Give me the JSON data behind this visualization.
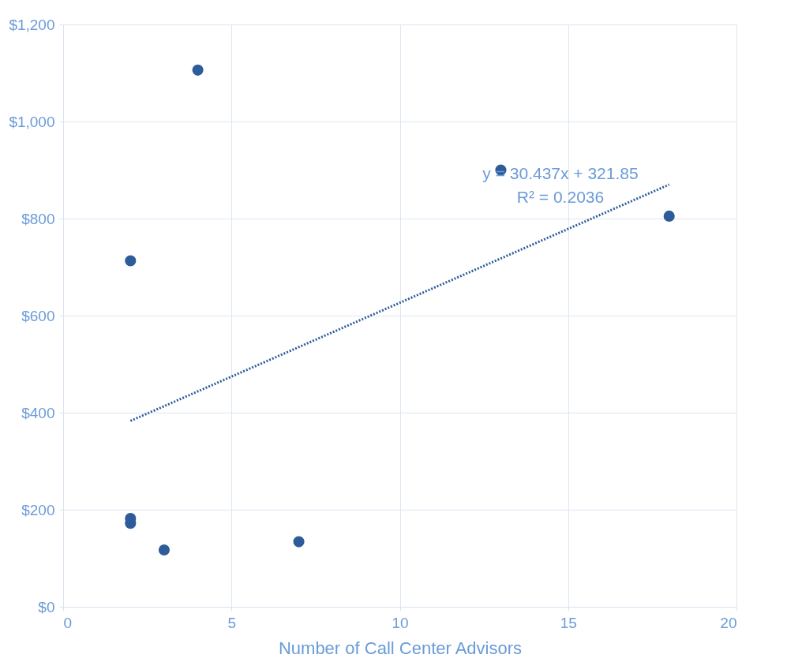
{
  "chart_data": {
    "type": "scatter",
    "xlabel": "Number of Call Center Advisors",
    "xlim": [
      0,
      20
    ],
    "xticks": [
      0,
      5,
      10,
      15,
      20
    ],
    "ylim": [
      0,
      1200
    ],
    "yticks": [
      {
        "value": 0,
        "label": "$0"
      },
      {
        "value": 200,
        "label": "$200"
      },
      {
        "value": 400,
        "label": "$400"
      },
      {
        "value": 600,
        "label": "$600"
      },
      {
        "value": 800,
        "label": "$800"
      },
      {
        "value": 1000,
        "label": "$1,000"
      },
      {
        "value": 1200,
        "label": "$1,200"
      }
    ],
    "grid": true,
    "series": [
      {
        "marker": "circle",
        "color": "#2e5c9a",
        "x": [
          2,
          4,
          13,
          18,
          2,
          2,
          3,
          7
        ],
        "values": [
          713,
          1106,
          900,
          805,
          182,
          172,
          117,
          134
        ]
      },
      {
        "type": "line",
        "color": "#2e5c9a",
        "line_style": "dotted",
        "x": [
          2,
          18
        ],
        "values": [
          383,
          870
        ]
      }
    ],
    "annotations": [
      "y = 30.437x + 321.85",
      "R² = 0.2036"
    ]
  }
}
